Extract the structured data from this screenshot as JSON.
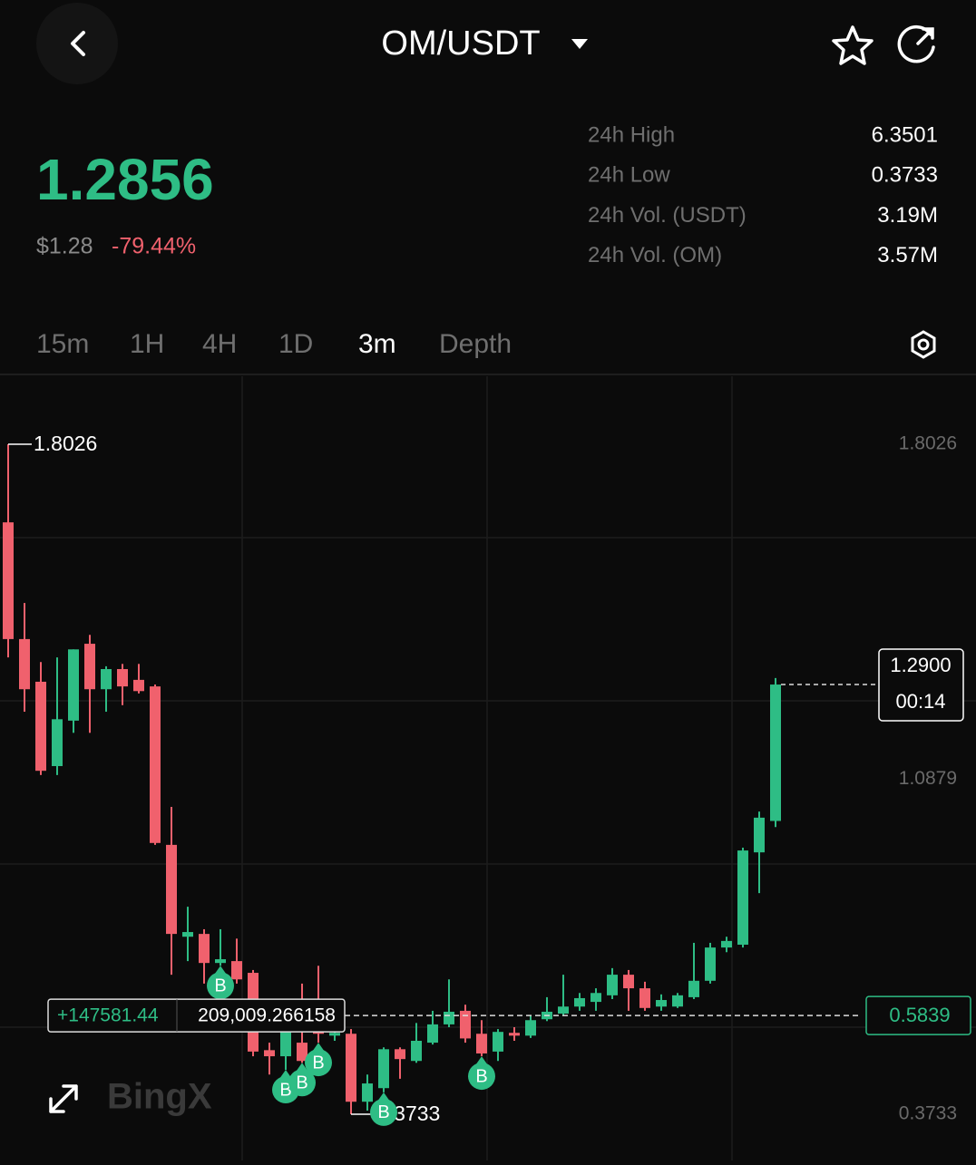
{
  "header": {
    "title": "OM/USDT",
    "last_price": "1.2856",
    "usd_price": "$1.28",
    "change": "-79.44%"
  },
  "stats": [
    {
      "label": "24h High",
      "value": "6.3501"
    },
    {
      "label": "24h Low",
      "value": "0.3733"
    },
    {
      "label": "24h Vol. (USDT)",
      "value": "3.19M"
    },
    {
      "label": "24h Vol. (OM)",
      "value": "3.57M"
    }
  ],
  "tabs": {
    "items": [
      "15m",
      "1H",
      "4H",
      "1D",
      "3m",
      "Depth"
    ],
    "active": 4
  },
  "watermark": "BingX",
  "chart_data": {
    "type": "candlestick",
    "open": [
      1.636,
      1.387,
      1.296,
      1.116,
      1.213,
      1.377,
      1.28,
      1.323,
      1.3,
      1.286,
      0.948,
      0.752,
      0.758,
      0.696,
      0.7,
      0.675,
      0.51,
      0.497,
      0.526,
      0.603,
      0.541,
      0.545,
      0.4,
      0.429,
      0.512,
      0.487,
      0.526,
      0.565,
      0.594,
      0.545,
      0.507,
      0.547,
      0.541,
      0.576,
      0.588,
      0.603,
      0.613,
      0.627,
      0.671,
      0.642,
      0.603,
      0.603,
      0.623,
      0.658,
      0.729,
      0.735,
      0.932,
      0.999
    ],
    "high": [
      1.8026,
      1.464,
      1.338,
      1.348,
      1.365,
      1.396,
      1.329,
      1.334,
      1.334,
      1.29,
      1.029,
      0.816,
      0.768,
      0.768,
      0.748,
      0.681,
      0.526,
      0.603,
      0.652,
      0.69,
      0.559,
      0.555,
      0.458,
      0.516,
      0.516,
      0.568,
      0.594,
      0.661,
      0.607,
      0.574,
      0.555,
      0.559,
      0.584,
      0.623,
      0.671,
      0.632,
      0.642,
      0.685,
      0.681,
      0.656,
      0.629,
      0.632,
      0.739,
      0.739,
      0.752,
      0.942,
      1.019,
      1.304
    ],
    "low": [
      1.348,
      1.232,
      1.097,
      1.097,
      1.187,
      1.187,
      1.232,
      1.246,
      1.271,
      0.948,
      0.671,
      0.7,
      0.652,
      0.69,
      0.652,
      0.497,
      0.458,
      0.468,
      0.483,
      0.526,
      0.53,
      0.3733,
      0.381,
      0.42,
      0.449,
      0.483,
      0.522,
      0.559,
      0.526,
      0.497,
      0.487,
      0.53,
      0.536,
      0.572,
      0.584,
      0.594,
      0.594,
      0.619,
      0.594,
      0.594,
      0.594,
      0.6,
      0.619,
      0.652,
      0.719,
      0.729,
      0.845,
      0.986
    ],
    "close": [
      1.387,
      1.28,
      1.106,
      1.216,
      1.365,
      1.28,
      1.323,
      1.286,
      1.276,
      0.952,
      0.758,
      0.762,
      0.696,
      0.704,
      0.661,
      0.507,
      0.497,
      0.565,
      0.487,
      0.545,
      0.547,
      0.4,
      0.439,
      0.512,
      0.491,
      0.53,
      0.565,
      0.592,
      0.535,
      0.503,
      0.549,
      0.541,
      0.574,
      0.592,
      0.603,
      0.621,
      0.632,
      0.671,
      0.642,
      0.6,
      0.617,
      0.627,
      0.658,
      0.729,
      0.743,
      0.936,
      1.006,
      1.29
    ],
    "up_color": "#2ebd85",
    "down_color": "#f0616d",
    "ylim": [
      0.2747,
      1.9477
    ],
    "yticks": [
      0.3733,
      1.0879,
      1.8026
    ],
    "high_label": 1.8026,
    "low_label": 0.3733,
    "current_price": {
      "value": 1.29,
      "label": "1.2900"
    },
    "countdown": "00:14",
    "position": {
      "price": 0.5839,
      "pnl": "+147581.44",
      "size": "209,009.266158"
    },
    "buy_markers": [
      {
        "index": 13,
        "label": "B"
      },
      {
        "index": 17,
        "label": "B"
      },
      {
        "index": 18,
        "label": "B"
      },
      {
        "index": 19,
        "label": "B"
      },
      {
        "index": 23,
        "label": "B"
      },
      {
        "index": 29,
        "label": "B"
      }
    ]
  }
}
